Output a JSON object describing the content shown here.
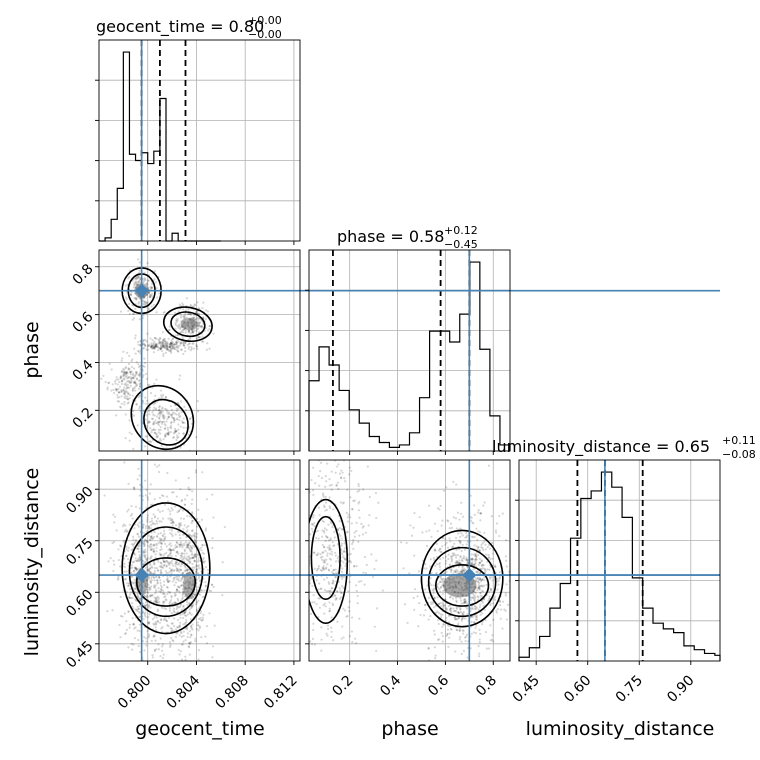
{
  "chart_data": {
    "type": "corner",
    "parameters": [
      "geocent_time",
      "phase",
      "luminosity_distance"
    ],
    "truth_color": "#4682b4",
    "truths": {
      "geocent_time": 0.7995,
      "phase": 0.7,
      "luminosity_distance": 0.65
    },
    "axes": {
      "geocent_time": {
        "range": [
          0.796,
          0.8125
        ],
        "ticks": [
          0.8,
          0.804,
          0.808,
          0.812
        ],
        "tick_labels": [
          "0.800",
          "0.804",
          "0.808",
          "0.812"
        ]
      },
      "phase": {
        "range": [
          0.03,
          0.87
        ],
        "ticks": [
          0.2,
          0.4,
          0.6,
          0.8
        ],
        "tick_labels": [
          "0.2",
          "0.4",
          "0.6",
          "0.8"
        ]
      },
      "luminosity_distance": {
        "range": [
          0.4,
          0.985
        ],
        "ticks": [
          0.45,
          0.6,
          0.75,
          0.9
        ],
        "tick_labels": [
          "0.45",
          "0.60",
          "0.75",
          "0.90"
        ]
      }
    },
    "marginals": [
      {
        "param": "geocent_time",
        "title_main": "geocent_time = 0.80",
        "title_sup": "+0.00",
        "title_sub": "−0.00",
        "median": 0.801,
        "quantiles": [
          0.7995,
          0.801,
          0.8031
        ],
        "bins": [
          0.796,
          0.7965,
          0.797,
          0.7975,
          0.798,
          0.7985,
          0.799,
          0.7995,
          0.8,
          0.8005,
          0.801,
          0.8015,
          0.802,
          0.8025,
          0.803,
          0.8035,
          0.804,
          0.8045,
          0.805,
          0.8055,
          0.806
        ],
        "counts": [
          0,
          2,
          14,
          34,
          122,
          56,
          52,
          57,
          50,
          58,
          92,
          0,
          5,
          0,
          0,
          0,
          0,
          0,
          0,
          0
        ]
      },
      {
        "param": "phase",
        "title_main": "phase = 0.58",
        "title_sup": "+0.12",
        "title_sub": "−0.45",
        "median": 0.58,
        "quantiles": [
          0.13,
          0.58,
          0.7
        ],
        "bins": [
          0.03,
          0.072,
          0.114,
          0.156,
          0.198,
          0.24,
          0.282,
          0.324,
          0.366,
          0.408,
          0.45,
          0.492,
          0.534,
          0.576,
          0.618,
          0.66,
          0.702,
          0.744,
          0.786,
          0.828,
          0.87
        ],
        "counts": [
          58,
          86,
          71,
          50,
          34,
          23,
          12,
          7,
          3,
          5,
          15,
          44,
          99,
          99,
          90,
          113,
          156,
          84,
          29,
          5
        ]
      },
      {
        "param": "luminosity_distance",
        "title_main": "luminosity_distance = 0.65",
        "title_sup": "+0.11",
        "title_sub": "−0.08",
        "median": 0.65,
        "quantiles": [
          0.57,
          0.65,
          0.76
        ],
        "bins": [
          0.4,
          0.43,
          0.46,
          0.49,
          0.52,
          0.55,
          0.58,
          0.61,
          0.64,
          0.67,
          0.7,
          0.73,
          0.76,
          0.79,
          0.82,
          0.85,
          0.88,
          0.91,
          0.94,
          0.97,
          0.985
        ],
        "counts": [
          2,
          7,
          13,
          28,
          41,
          65,
          86,
          90,
          100,
          92,
          76,
          44,
          28,
          20,
          17,
          15,
          8,
          6,
          4,
          3
        ]
      }
    ]
  }
}
